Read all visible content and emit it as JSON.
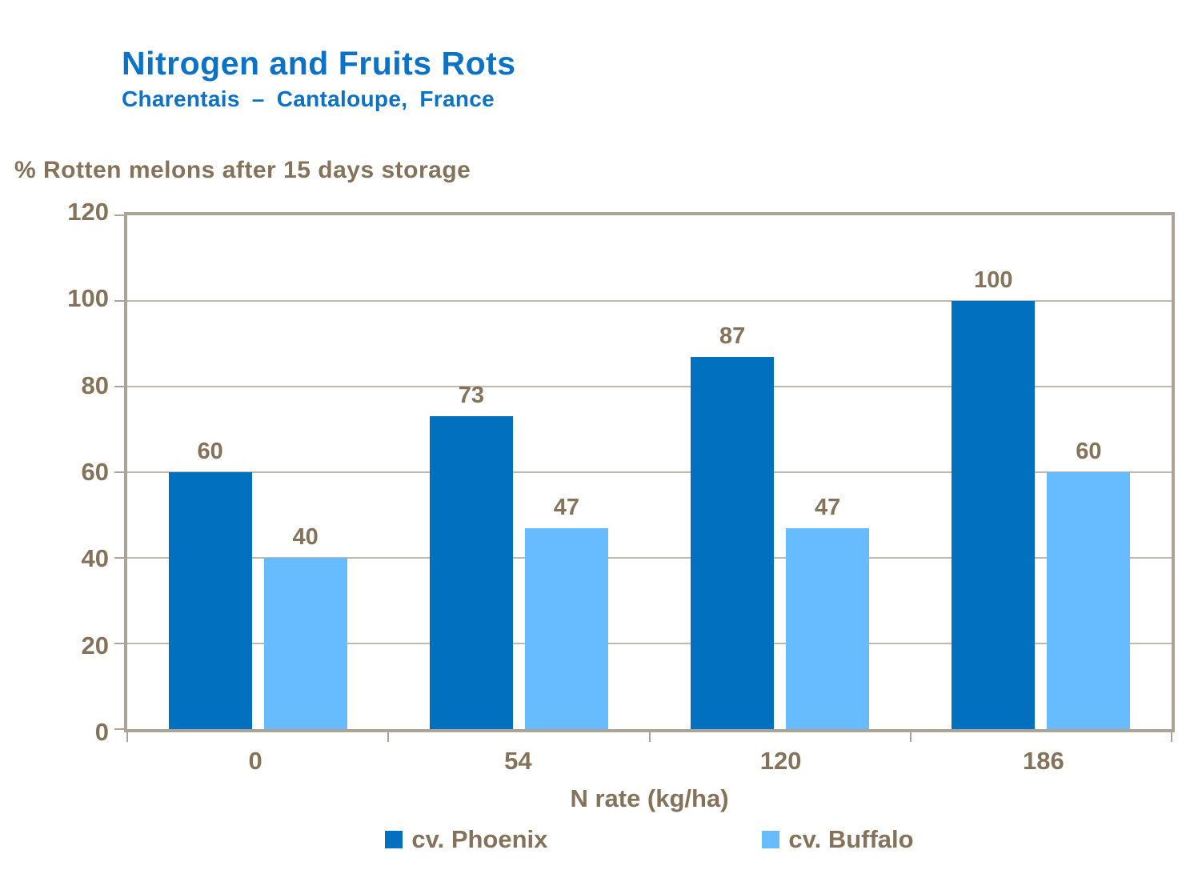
{
  "header": {
    "title": "Nitrogen and Fruits Rots",
    "subtitle": "Charentais – Cantaloupe, France"
  },
  "chart_data": {
    "type": "bar",
    "title": "Nitrogen and Fruits Rots",
    "subtitle": "Charentais – Cantaloupe, France",
    "y_axis_title": "% Rotten melons after 15 days storage",
    "x_axis_title": "N rate (kg/ha)",
    "categories": [
      "0",
      "54",
      "120",
      "186"
    ],
    "series": [
      {
        "name": "cv. Phoenix",
        "color": "#0070BF",
        "values": [
          60,
          73,
          87,
          100
        ]
      },
      {
        "name": "cv. Buffalo",
        "color": "#66BCFE",
        "values": [
          40,
          47,
          47,
          60
        ]
      }
    ],
    "ylim": [
      0,
      120
    ],
    "yticks": [
      0,
      20,
      40,
      60,
      80,
      100,
      120
    ],
    "grid": true,
    "data_labels": true,
    "legend_position": "bottom"
  },
  "colors": {
    "title_blue": "#0C72C6",
    "text_brown": "#84735A",
    "plot_border": "#ACA498",
    "gridline": "#C1B9AE",
    "series_phoenix": "#0070BF",
    "series_buffalo": "#66BCFE"
  }
}
